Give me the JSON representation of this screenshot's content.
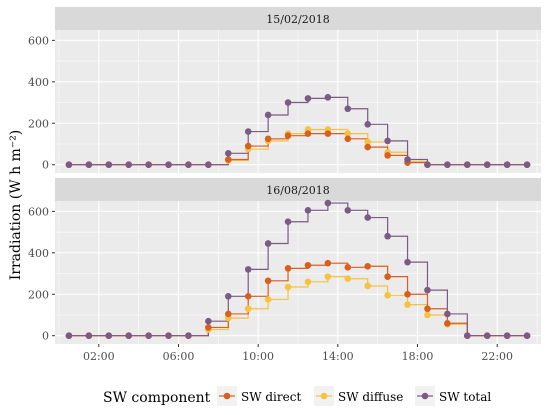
{
  "chart_data": {
    "type": "line",
    "step": true,
    "ylabel": "Irradiation (W h m⁻²)",
    "ylim": [
      -40,
      650
    ],
    "yticks": [
      0,
      200,
      400,
      600
    ],
    "xlim": [
      -0.2,
      24.2
    ],
    "xticks": [
      2,
      6,
      10,
      14,
      18,
      22
    ],
    "xtick_labels": [
      "02:00",
      "06:00",
      "10:00",
      "14:00",
      "18:00",
      "22:00"
    ],
    "grid": true,
    "legend": {
      "title": "SW component",
      "position": "bottom",
      "entries": [
        "SW direct",
        "SW diffuse",
        "SW total"
      ]
    },
    "colors": {
      "SW direct": "#d95f1f",
      "SW diffuse": "#f5c242",
      "SW total": "#7b5a86"
    },
    "x": [
      0.5,
      1.5,
      2.5,
      3.5,
      4.5,
      5.5,
      6.5,
      7.5,
      8.5,
      9.5,
      10.5,
      11.5,
      12.5,
      13.5,
      14.5,
      15.5,
      16.5,
      17.5,
      18.5,
      19.5,
      20.5,
      21.5,
      22.5,
      23.5
    ],
    "panels": [
      {
        "label": "15/02/2018",
        "series": [
          {
            "name": "SW direct",
            "values": [
              0,
              0,
              0,
              0,
              0,
              0,
              0,
              0,
              25,
              90,
              125,
              140,
              150,
              150,
              125,
              85,
              45,
              10,
              0,
              0,
              0,
              0,
              0,
              0
            ]
          },
          {
            "name": "SW diffuse",
            "values": [
              0,
              0,
              0,
              0,
              0,
              0,
              0,
              0,
              20,
              75,
              115,
              150,
              170,
              170,
              150,
              110,
              60,
              15,
              0,
              0,
              0,
              0,
              0,
              0
            ]
          },
          {
            "name": "SW total",
            "values": [
              0,
              0,
              0,
              0,
              0,
              0,
              0,
              0,
              55,
              160,
              240,
              300,
              320,
              325,
              270,
              195,
              115,
              25,
              0,
              0,
              0,
              0,
              0,
              0
            ]
          }
        ]
      },
      {
        "label": "16/08/2018",
        "series": [
          {
            "name": "SW direct",
            "values": [
              0,
              0,
              0,
              0,
              0,
              0,
              0,
              40,
              105,
              190,
              265,
              325,
              340,
              350,
              330,
              335,
              285,
              200,
              130,
              60,
              0,
              0,
              0,
              0
            ]
          },
          {
            "name": "SW diffuse",
            "values": [
              0,
              0,
              0,
              0,
              0,
              0,
              0,
              30,
              85,
              130,
              175,
              235,
              260,
              285,
              275,
              240,
              195,
              150,
              100,
              55,
              0,
              0,
              0,
              0
            ]
          },
          {
            "name": "SW total",
            "values": [
              0,
              0,
              0,
              0,
              0,
              0,
              0,
              70,
              190,
              320,
              445,
              550,
              605,
              640,
              605,
              570,
              480,
              355,
              220,
              105,
              0,
              0,
              0,
              0
            ]
          }
        ]
      }
    ]
  }
}
